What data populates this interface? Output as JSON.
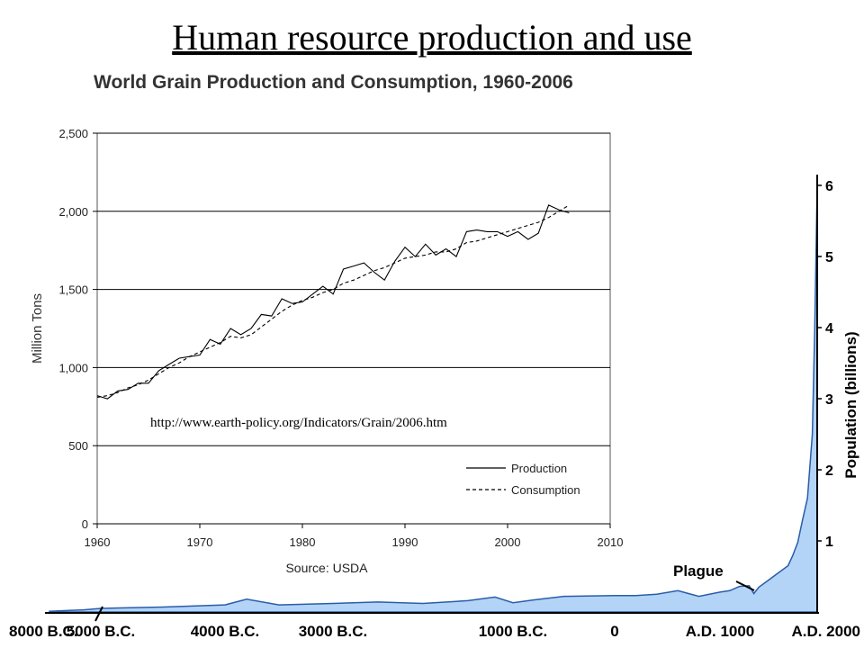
{
  "slide": {
    "title": "Human resource production and use"
  },
  "colors": {
    "population_fill": "#b3d4f7",
    "population_stroke": "#2a5da8"
  },
  "chart_data": [
    {
      "type": "line",
      "title": "World Grain Production and Consumption, 1960-2006",
      "ylabel": "Million Tons",
      "xlabel": "Source: USDA",
      "url": "http://www.earth-policy.org/Indicators/Grain/2006.htm",
      "xlim": [
        1960,
        2010
      ],
      "ylim": [
        0,
        2500
      ],
      "x_ticks": [
        "1960",
        "1970",
        "1980",
        "1990",
        "2000",
        "2010"
      ],
      "y_ticks": [
        "0",
        "500",
        "1,000",
        "1,500",
        "2,000",
        "2,500"
      ],
      "grid": "horizontal",
      "legend": "bottom-right",
      "series": [
        {
          "name": "Production",
          "style": "solid",
          "x": [
            1960,
            1961,
            1962,
            1963,
            1964,
            1965,
            1966,
            1967,
            1968,
            1969,
            1970,
            1971,
            1972,
            1973,
            1974,
            1975,
            1976,
            1977,
            1978,
            1979,
            1980,
            1981,
            1982,
            1983,
            1984,
            1985,
            1986,
            1987,
            1988,
            1989,
            1990,
            1991,
            1992,
            1993,
            1994,
            1995,
            1996,
            1997,
            1998,
            1999,
            2000,
            2001,
            2002,
            2003,
            2004,
            2005,
            2006
          ],
          "values": [
            820,
            800,
            850,
            860,
            900,
            900,
            980,
            1020,
            1060,
            1070,
            1080,
            1180,
            1150,
            1250,
            1210,
            1250,
            1340,
            1330,
            1440,
            1410,
            1420,
            1470,
            1520,
            1470,
            1630,
            1650,
            1670,
            1610,
            1560,
            1680,
            1770,
            1710,
            1790,
            1720,
            1760,
            1710,
            1870,
            1880,
            1870,
            1870,
            1840,
            1870,
            1820,
            1860,
            2040,
            2010,
            1990
          ]
        },
        {
          "name": "Consumption",
          "style": "dashed",
          "x": [
            1960,
            1961,
            1962,
            1963,
            1964,
            1965,
            1966,
            1967,
            1968,
            1969,
            1970,
            1971,
            1972,
            1973,
            1974,
            1975,
            1976,
            1977,
            1978,
            1979,
            1980,
            1981,
            1982,
            1983,
            1984,
            1985,
            1986,
            1987,
            1988,
            1989,
            1990,
            1991,
            1992,
            1993,
            1994,
            1995,
            1996,
            1997,
            1998,
            1999,
            2000,
            2001,
            2002,
            2003,
            2004,
            2005,
            2006
          ],
          "values": [
            810,
            820,
            840,
            870,
            890,
            920,
            960,
            1000,
            1030,
            1070,
            1100,
            1130,
            1160,
            1200,
            1190,
            1210,
            1260,
            1310,
            1360,
            1400,
            1430,
            1450,
            1480,
            1500,
            1540,
            1560,
            1590,
            1620,
            1640,
            1670,
            1700,
            1710,
            1720,
            1740,
            1740,
            1760,
            1800,
            1810,
            1830,
            1850,
            1870,
            1890,
            1910,
            1930,
            1960,
            2000,
            2040
          ]
        }
      ]
    },
    {
      "type": "area",
      "ylabel": "Population (billions)",
      "x_ticks": [
        "8000 B.C.",
        "5000 B.C.",
        "4000 B.C.",
        "3000 B.C.",
        "1000 B.C.",
        "0",
        "A.D. 1000",
        "A.D. 2000"
      ],
      "y_ticks": [
        "1",
        "2",
        "3",
        "4",
        "5",
        "6"
      ],
      "annotation": "Plague",
      "series": [
        {
          "x": [
            -8000,
            -7000,
            -6000,
            -5000,
            -4500,
            -4000,
            -3800,
            -3500,
            -3000,
            -2500,
            -2000,
            -1500,
            -1200,
            -1000,
            -800,
            -500,
            0,
            200,
            400,
            600,
            800,
            1000,
            1100,
            1200,
            1300,
            1348,
            1400,
            1500,
            1600,
            1700,
            1750,
            1800,
            1850,
            1900,
            1950,
            1975,
            2000
          ],
          "values": [
            0.01,
            0.02,
            0.03,
            0.05,
            0.07,
            0.1,
            0.18,
            0.1,
            0.12,
            0.14,
            0.12,
            0.16,
            0.21,
            0.13,
            0.17,
            0.22,
            0.23,
            0.23,
            0.25,
            0.3,
            0.22,
            0.28,
            0.3,
            0.36,
            0.37,
            0.26,
            0.35,
            0.45,
            0.55,
            0.65,
            0.8,
            0.98,
            1.3,
            1.6,
            2.5,
            4.0,
            6.0
          ]
        }
      ]
    }
  ]
}
